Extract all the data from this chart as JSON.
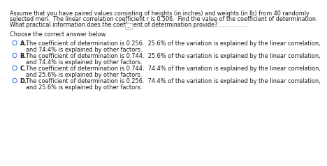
{
  "title_lines": [
    "Assume that you have paired values consisting of heights (in inches) and weights (in lb) from 40 randomly",
    "selected men.  The linear correlation coefficient r is 0.506.  Find the value of the coefficient of determination.",
    "What practical information does the coefficient of determination provide?"
  ],
  "divider_label": "...",
  "choose_text": "Choose the correct answer below.",
  "options": [
    {
      "letter": "A.",
      "line1": "The coefficient of determination is 0.256.  25.6% of the variation is explained by the linear correlation,",
      "line2": "and 74.4% is explained by other factors."
    },
    {
      "letter": "B.",
      "line1": "The coefficient of determination is 0.744.  25.6% of the variation is explained by the linear correlation,",
      "line2": "and 74.4% is explained by other factors."
    },
    {
      "letter": "C.",
      "line1": "The coefficient of determination is 0.744.  74.4% of the variation is explained by the linear correlation,",
      "line2": "and 25.6% is explained by other factors."
    },
    {
      "letter": "D.",
      "line1": "The coefficient of determination is 0.256.  74.4% of the variation is explained by the linear correlation,",
      "line2": "and 25.6% is explained by other factors."
    }
  ],
  "bg_color": "#ffffff",
  "text_color": "#1a1a1a",
  "circle_color": "#5b8dd9",
  "font_size_title": 5.8,
  "font_size_body": 5.9
}
